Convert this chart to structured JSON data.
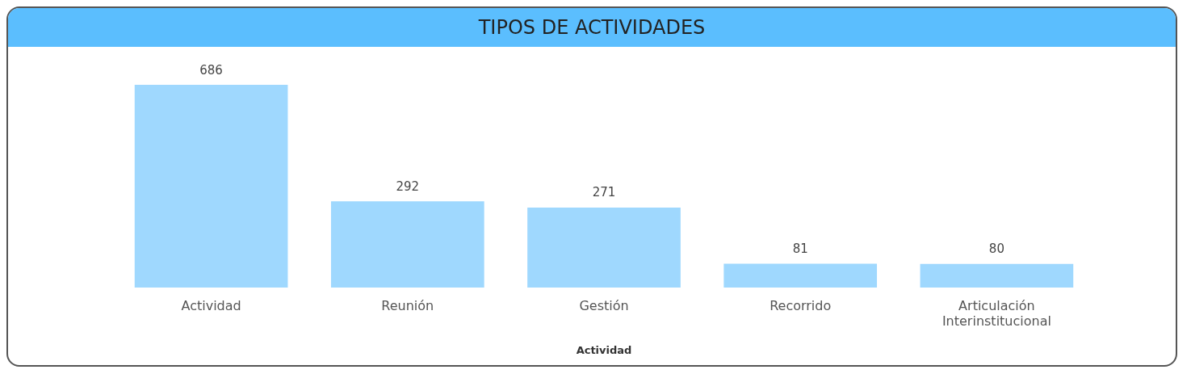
{
  "chart_data": {
    "type": "bar",
    "title": "TIPOS DE ACTIVIDADES",
    "xlabel": "Actividad",
    "categories": [
      "Actividad",
      "Reunión",
      "Gestión",
      "Recorrido",
      "Articulación Interinstitucional"
    ],
    "values": [
      686,
      292,
      271,
      81,
      80
    ],
    "color": "#9fd8fe",
    "tick_labels": "x",
    "data_labels": true,
    "grid": false,
    "legend": false
  }
}
